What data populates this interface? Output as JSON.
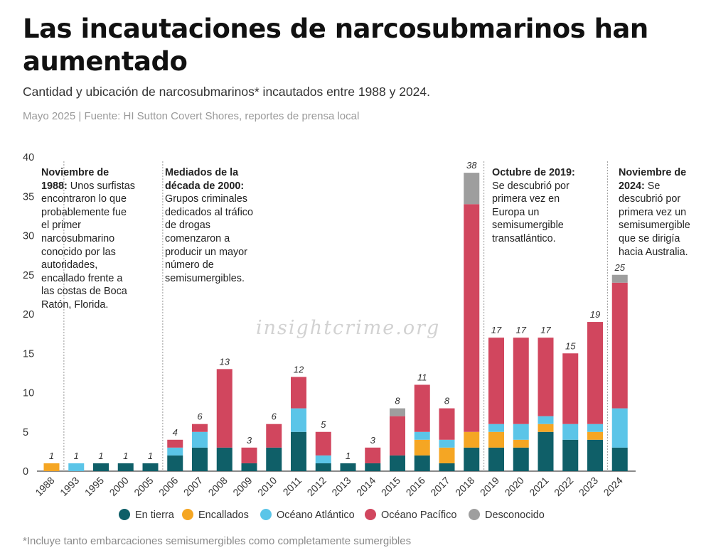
{
  "header": {
    "title": "Las incautaciones de narcosubmarinos han aumentado",
    "subtitle": "Cantidad y ubicación de narcosubmarinos* incautados entre 1988 y 2024.",
    "source": "Mayo 2025 | Fuente: HI Sutton Covert Shores, reportes de prensa local"
  },
  "annotations": [
    {
      "bold": "Noviembre de 1988:",
      "text": " Unos surfistas encontraron lo que probablemente fue el primer narcosubmarino conocido por las autoridades, encallado frente a las costas de Boca Ratón, Florida."
    },
    {
      "bold": "Mediados de la década de 2000:",
      "text": " Grupos criminales dedicados al tráfico de drogas comenzaron a producir un mayor número de semisumergibles."
    },
    {
      "bold": "Octubre de 2019:",
      "text": " Se descubrió por primera vez en Europa un semisumergible transatlántico."
    },
    {
      "bold": "Noviembre de 2024:",
      "text": " Se descubrió por primera vez un semisumergible que se dirigía hacia Australia."
    }
  ],
  "watermark": "insightcrime.org",
  "footnote": "*Incluye tanto embarcaciones semisumergibles como completamente sumergibles",
  "chart_data": {
    "type": "bar",
    "stacked": true,
    "categories": [
      "1988",
      "1993",
      "1995",
      "2000",
      "2005",
      "2006",
      "2007",
      "2008",
      "2009",
      "2010",
      "2011",
      "2012",
      "2013",
      "2014",
      "2015",
      "2016",
      "2017",
      "2018",
      "2019",
      "2020",
      "2021",
      "2022",
      "2023",
      "2024"
    ],
    "series": [
      {
        "name": "En tierra",
        "color": "#0f5f68",
        "values": [
          0,
          0,
          1,
          1,
          1,
          2,
          3,
          3,
          1,
          3,
          5,
          1,
          1,
          1,
          2,
          2,
          1,
          3,
          3,
          3,
          5,
          4,
          4,
          3
        ]
      },
      {
        "name": "Encallados",
        "color": "#f5a623",
        "values": [
          1,
          0,
          0,
          0,
          0,
          0,
          0,
          0,
          0,
          0,
          0,
          0,
          0,
          0,
          0,
          2,
          2,
          2,
          2,
          1,
          1,
          0,
          1,
          0
        ]
      },
      {
        "name": "Océano Atlántico",
        "color": "#5bc5e8",
        "values": [
          0,
          1,
          0,
          0,
          0,
          1,
          2,
          0,
          0,
          0,
          3,
          1,
          0,
          0,
          0,
          1,
          1,
          0,
          1,
          2,
          1,
          2,
          1,
          5
        ]
      },
      {
        "name": "Océano Pacífico",
        "color": "#d1465e",
        "values": [
          0,
          0,
          0,
          0,
          0,
          1,
          1,
          10,
          2,
          3,
          4,
          3,
          0,
          2,
          5,
          6,
          4,
          29,
          11,
          11,
          10,
          9,
          13,
          16
        ]
      },
      {
        "name": "Desconocido",
        "color": "#9e9e9e",
        "values": [
          0,
          0,
          0,
          0,
          0,
          0,
          0,
          0,
          0,
          0,
          0,
          0,
          0,
          0,
          1,
          0,
          0,
          4,
          0,
          0,
          0,
          0,
          0,
          1
        ]
      }
    ],
    "totals": [
      1,
      1,
      1,
      1,
      1,
      4,
      6,
      13,
      3,
      6,
      12,
      5,
      1,
      3,
      8,
      11,
      8,
      38,
      17,
      17,
      17,
      15,
      19,
      25
    ],
    "yticks": [
      0,
      5,
      10,
      15,
      20,
      25,
      30,
      35,
      40
    ],
    "ylim": [
      0,
      40
    ],
    "dividers_after": [
      "1988",
      "2005",
      "2018",
      "2023"
    ],
    "legend_position": "bottom"
  }
}
